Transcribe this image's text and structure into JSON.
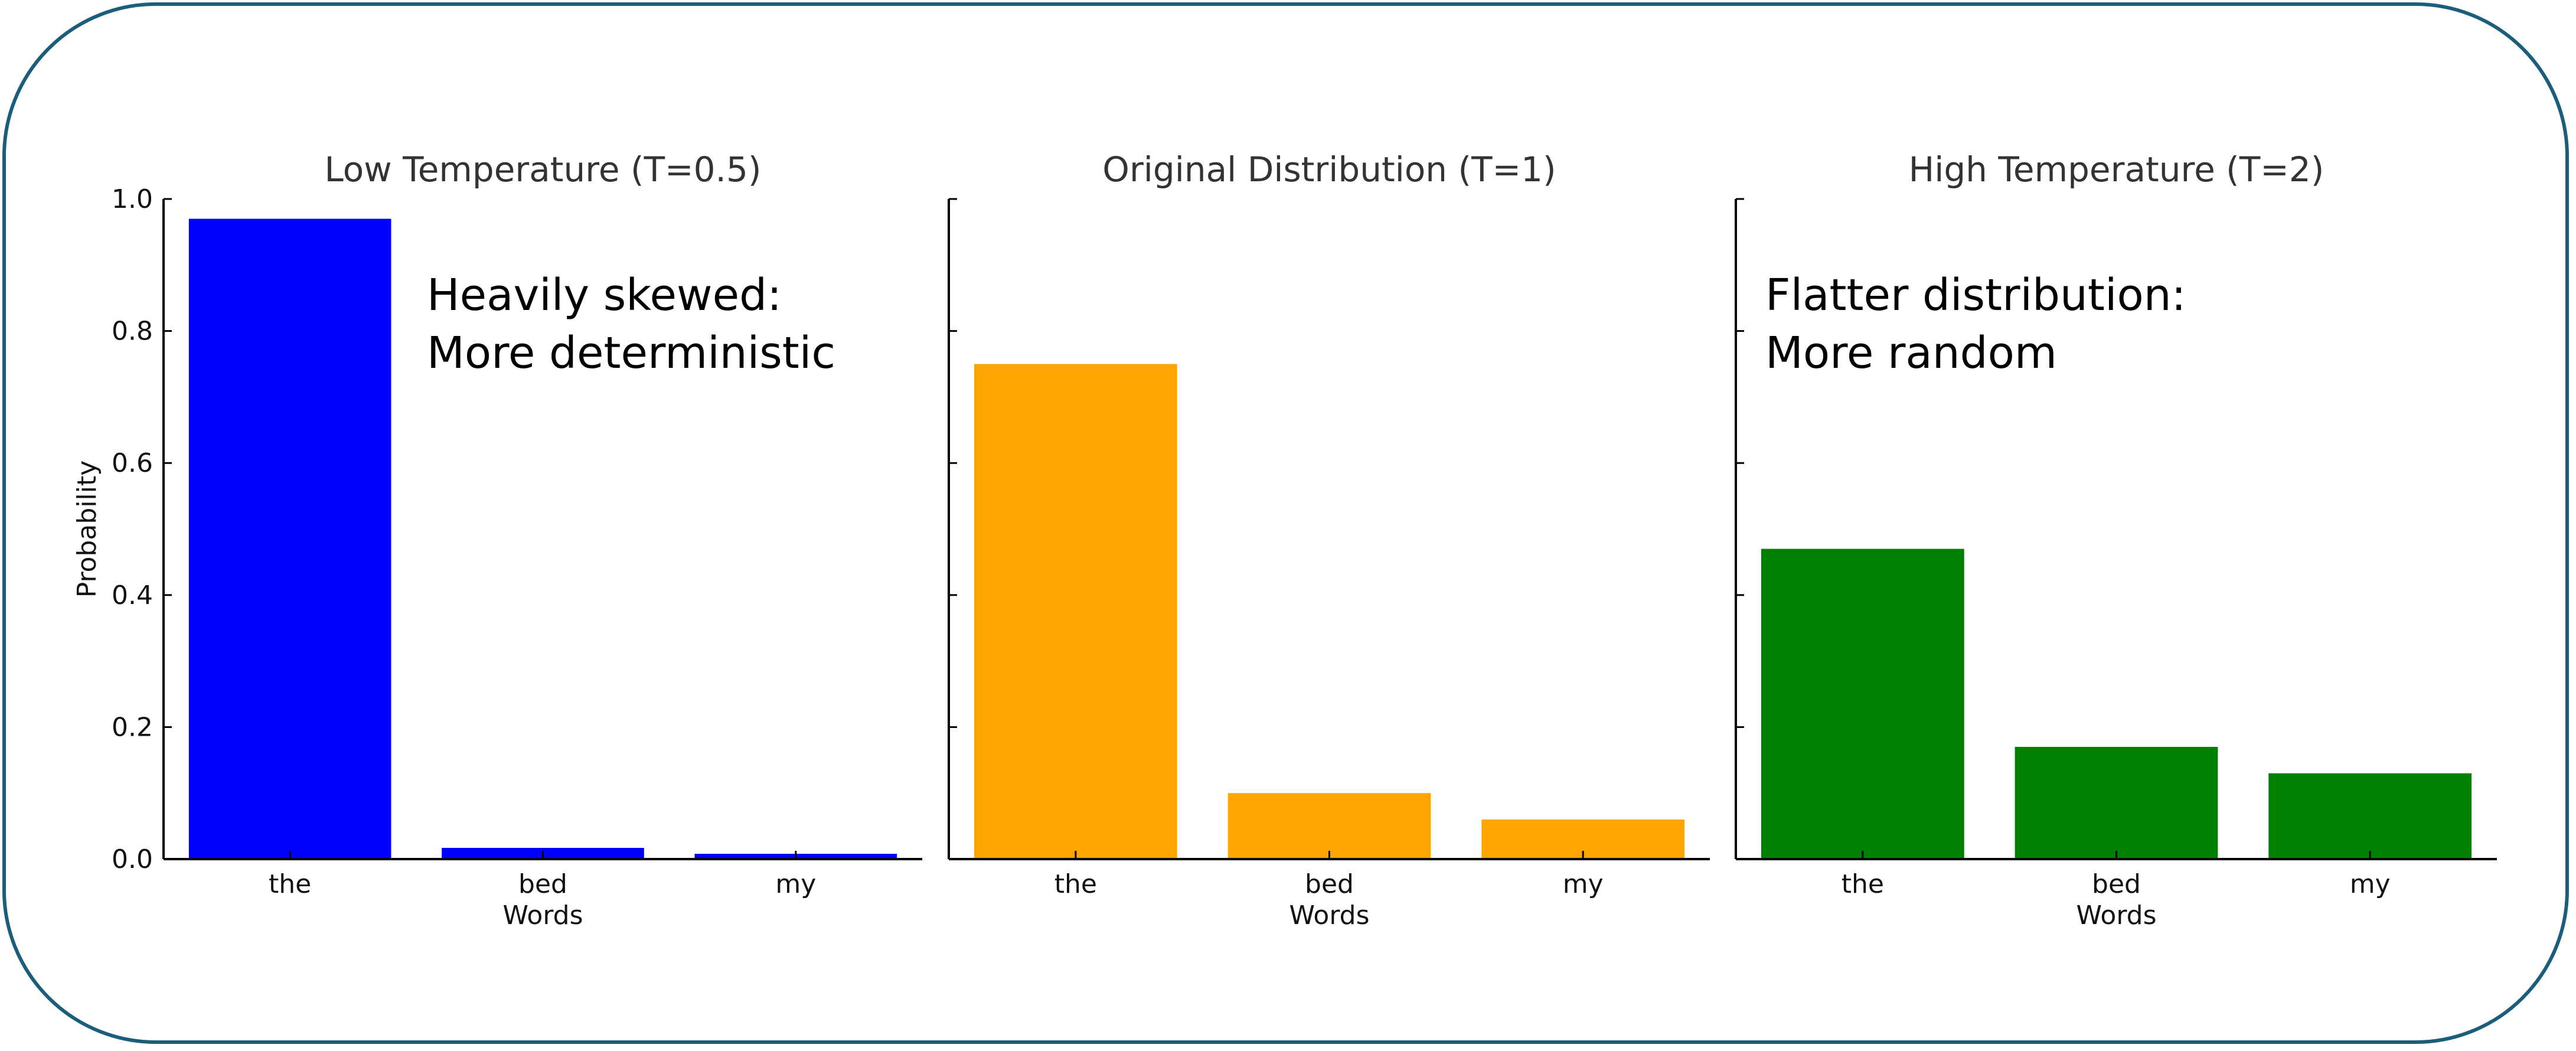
{
  "chart_data": [
    {
      "type": "bar",
      "title": "Low Temperature (T=0.5)",
      "categories": [
        "the",
        "bed",
        "my"
      ],
      "values": [
        0.97,
        0.017,
        0.008
      ],
      "color": "#0000FF",
      "xlabel": "Words",
      "ylabel": "Probability",
      "ylim": [
        0,
        1.0
      ],
      "yticks": [
        "0.0",
        "0.2",
        "0.4",
        "0.6",
        "0.8",
        "1.0"
      ],
      "annotation": [
        "Heavily skewed:",
        "More deterministic"
      ]
    },
    {
      "type": "bar",
      "title": "Original Distribution (T=1)",
      "categories": [
        "the",
        "bed",
        "my"
      ],
      "values": [
        0.75,
        0.1,
        0.06
      ],
      "color": "#FFA500",
      "xlabel": "Words",
      "ylim": [
        0,
        1.0
      ],
      "annotation": []
    },
    {
      "type": "bar",
      "title": "High Temperature (T=2)",
      "categories": [
        "the",
        "bed",
        "my"
      ],
      "values": [
        0.47,
        0.17,
        0.13
      ],
      "color": "#008000",
      "xlabel": "Words",
      "ylim": [
        0,
        1.0
      ],
      "annotation": [
        "Flatter distribution:",
        "More random"
      ]
    }
  ],
  "frame_color": "#1b5e7b"
}
